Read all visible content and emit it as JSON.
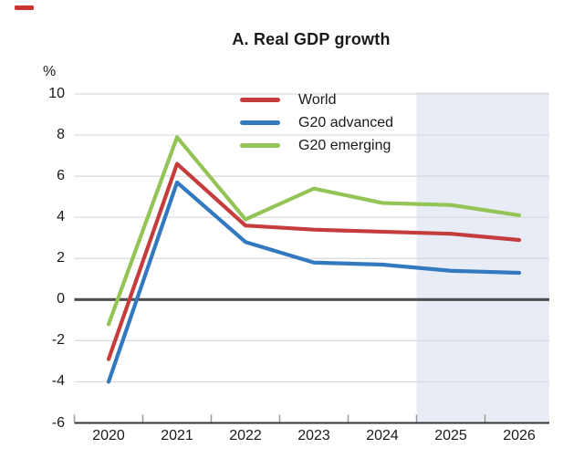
{
  "figure": {
    "accent_color": "#cc3333"
  },
  "chart_data": {
    "type": "line",
    "title": "A. Real GDP growth",
    "unit": "%",
    "xlabel": "",
    "ylabel": "%",
    "categories": [
      "2020",
      "2021",
      "2022",
      "2023",
      "2024",
      "2025",
      "2026"
    ],
    "series": [
      {
        "name": "World",
        "color": "#c43c3c",
        "values": [
          -2.9,
          6.6,
          3.6,
          3.4,
          3.3,
          3.2,
          2.9
        ]
      },
      {
        "name": "G20 advanced",
        "color": "#3379bf",
        "values": [
          -4.0,
          5.7,
          2.8,
          1.8,
          1.7,
          1.4,
          1.3
        ]
      },
      {
        "name": "G20 emerging",
        "color": "#94c356",
        "values": [
          -1.2,
          7.9,
          3.9,
          5.4,
          4.7,
          4.6,
          4.1
        ]
      }
    ],
    "ylim": [
      -6,
      10
    ],
    "yticks": [
      10,
      8,
      6,
      4,
      2,
      0,
      -2,
      -4,
      -6
    ],
    "grid": "horizontal",
    "zero_line": true,
    "legend_position": "top-center-inside",
    "forecast_shading": {
      "from_category_index": 4.5,
      "to": "right-edge",
      "color": "#e8ecf4"
    },
    "colors": {
      "grid": "#d9d9d9",
      "zero_line": "#4f4f4f",
      "axis": "#333333",
      "tick": "#999999",
      "text": "#1a1a1a"
    }
  }
}
